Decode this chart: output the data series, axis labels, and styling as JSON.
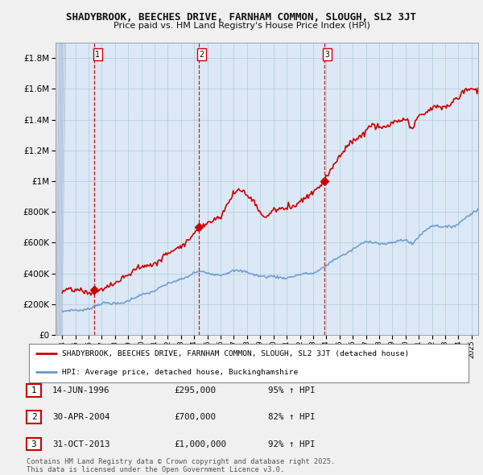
{
  "title": "SHADYBROOK, BEECHES DRIVE, FARNHAM COMMON, SLOUGH, SL2 3JT",
  "subtitle": "Price paid vs. HM Land Registry's House Price Index (HPI)",
  "ylim": [
    0,
    1900000
  ],
  "yticks": [
    0,
    200000,
    400000,
    600000,
    800000,
    1000000,
    1200000,
    1400000,
    1600000,
    1800000
  ],
  "ytick_labels": [
    "£0",
    "£200K",
    "£400K",
    "£600K",
    "£800K",
    "£1M",
    "£1.2M",
    "£1.4M",
    "£1.6M",
    "£1.8M"
  ],
  "sale_dates": [
    1996.45,
    2004.33,
    2013.83
  ],
  "sale_prices": [
    295000,
    700000,
    1000000
  ],
  "sale_labels": [
    "1",
    "2",
    "3"
  ],
  "hpi_color": "#6699cc",
  "sale_color": "#cc0000",
  "legend_items": [
    "SHADYBROOK, BEECHES DRIVE, FARNHAM COMMON, SLOUGH, SL2 3JT (detached house)",
    "HPI: Average price, detached house, Buckinghamshire"
  ],
  "table_rows": [
    [
      "1",
      "14-JUN-1996",
      "£295,000",
      "95% ↑ HPI"
    ],
    [
      "2",
      "30-APR-2004",
      "£700,000",
      "82% ↑ HPI"
    ],
    [
      "3",
      "31-OCT-2013",
      "£1,000,000",
      "92% ↑ HPI"
    ]
  ],
  "footer": "Contains HM Land Registry data © Crown copyright and database right 2025.\nThis data is licensed under the Open Government Licence v3.0.",
  "plot_bg_color": "#dce8f5",
  "fig_bg_color": "#f0f0f0",
  "grid_color": "#b8cfe0"
}
